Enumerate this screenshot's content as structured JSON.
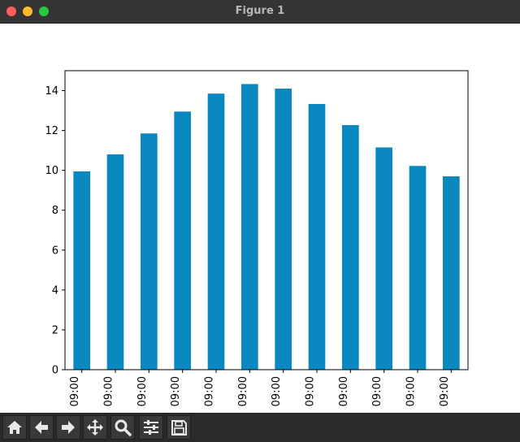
{
  "window": {
    "title": "Figure 1"
  },
  "toolbar": {
    "buttons": [
      {
        "name": "home",
        "icon": "home-icon"
      },
      {
        "name": "back",
        "icon": "arrow-left-icon"
      },
      {
        "name": "forward",
        "icon": "arrow-right-icon"
      },
      {
        "name": "pan",
        "icon": "move-icon"
      },
      {
        "name": "zoom",
        "icon": "magnifier-icon"
      },
      {
        "name": "configure",
        "icon": "sliders-icon"
      },
      {
        "name": "save",
        "icon": "floppy-disk-icon"
      }
    ]
  },
  "chart_data": {
    "type": "bar",
    "categories": [
      "09:00",
      "09:00",
      "09:00",
      "09:00",
      "09:00",
      "09:00",
      "09:00",
      "09:00",
      "09:00",
      "09:00",
      "09:00",
      "09:00"
    ],
    "values": [
      9.95,
      10.8,
      11.85,
      12.95,
      13.85,
      14.33,
      14.1,
      13.33,
      12.27,
      11.15,
      10.22,
      9.7
    ],
    "yticks": [
      0,
      2,
      4,
      6,
      8,
      10,
      12,
      14
    ],
    "ylim": [
      0,
      15
    ],
    "bar_color": "#0a88c0",
    "grid": false,
    "legend": "none",
    "xtick_rotation": 90
  }
}
